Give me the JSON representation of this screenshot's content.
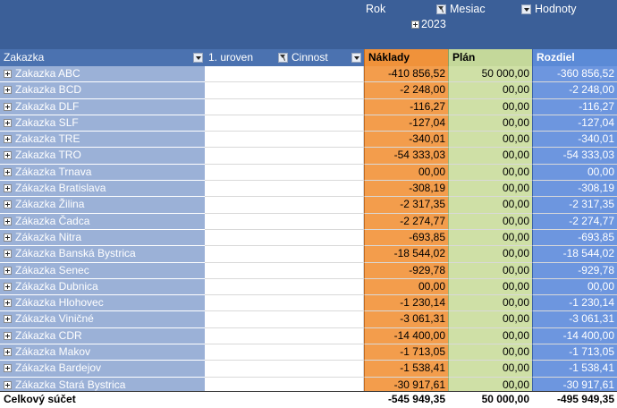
{
  "filters": {
    "rok": "Rok",
    "mesiac": "Mesiac",
    "hodnoty": "Hodnoty",
    "year": "2023"
  },
  "headers": {
    "zakazka": "Zakazka",
    "uroven": "1. uroven",
    "cinnost": "Cinnost",
    "naklady": "Náklady",
    "plan": "Plán",
    "rozdiel": "Rozdiel"
  },
  "rows": [
    {
      "name": "Zakazka ABC",
      "naklady": "-410 856,52",
      "plan": "50 000,00",
      "rozdiel": "-360 856,52"
    },
    {
      "name": "Zakazka BCD",
      "naklady": "-2 248,00",
      "plan": "00,00",
      "rozdiel": "-2 248,00"
    },
    {
      "name": "Zakazka DLF",
      "naklady": "-116,27",
      "plan": "00,00",
      "rozdiel": "-116,27"
    },
    {
      "name": "Zakazka SLF",
      "naklady": "-127,04",
      "plan": "00,00",
      "rozdiel": "-127,04"
    },
    {
      "name": "Zakazka TRE",
      "naklady": "-340,01",
      "plan": "00,00",
      "rozdiel": "-340,01"
    },
    {
      "name": "Zakazka TRO",
      "naklady": "-54 333,03",
      "plan": "00,00",
      "rozdiel": "-54 333,03"
    },
    {
      "name": "Zákazka Trnava",
      "naklady": "00,00",
      "plan": "00,00",
      "rozdiel": "00,00"
    },
    {
      "name": "Zákazka Bratislava",
      "naklady": "-308,19",
      "plan": "00,00",
      "rozdiel": "-308,19"
    },
    {
      "name": "Zákazka Žilina",
      "naklady": "-2 317,35",
      "plan": "00,00",
      "rozdiel": "-2 317,35"
    },
    {
      "name": "Zákazka Čadca",
      "naklady": "-2 274,77",
      "plan": "00,00",
      "rozdiel": "-2 274,77"
    },
    {
      "name": "Zákazka Nitra",
      "naklady": "-693,85",
      "plan": "00,00",
      "rozdiel": "-693,85"
    },
    {
      "name": "Zákazka Banská Bystrica",
      "naklady": "-18 544,02",
      "plan": "00,00",
      "rozdiel": "-18 544,02"
    },
    {
      "name": "Zákazka Senec",
      "naklady": "-929,78",
      "plan": "00,00",
      "rozdiel": "-929,78"
    },
    {
      "name": "Zákazka Dubnica",
      "naklady": "00,00",
      "plan": "00,00",
      "rozdiel": "00,00"
    },
    {
      "name": "Zákazka Hlohovec",
      "naklady": "-1 230,14",
      "plan": "00,00",
      "rozdiel": "-1 230,14"
    },
    {
      "name": "Zákazka Viničné",
      "naklady": "-3 061,31",
      "plan": "00,00",
      "rozdiel": "-3 061,31"
    },
    {
      "name": "Zákazka CDR",
      "naklady": "-14 400,00",
      "plan": "00,00",
      "rozdiel": "-14 400,00"
    },
    {
      "name": "Zákazka Makov",
      "naklady": "-1 713,05",
      "plan": "00,00",
      "rozdiel": "-1 713,05"
    },
    {
      "name": "Zákazka Bardejov",
      "naklady": "-1 538,41",
      "plan": "00,00",
      "rozdiel": "-1 538,41"
    },
    {
      "name": "Zákazka Stará Bystrica",
      "naklady": "-30 917,61",
      "plan": "00,00",
      "rozdiel": "-30 917,61"
    }
  ],
  "total": {
    "label": "Celkový súčet",
    "naklady": "-545 949,35",
    "plan": "50 000,00",
    "rozdiel": "-495 949,35"
  }
}
